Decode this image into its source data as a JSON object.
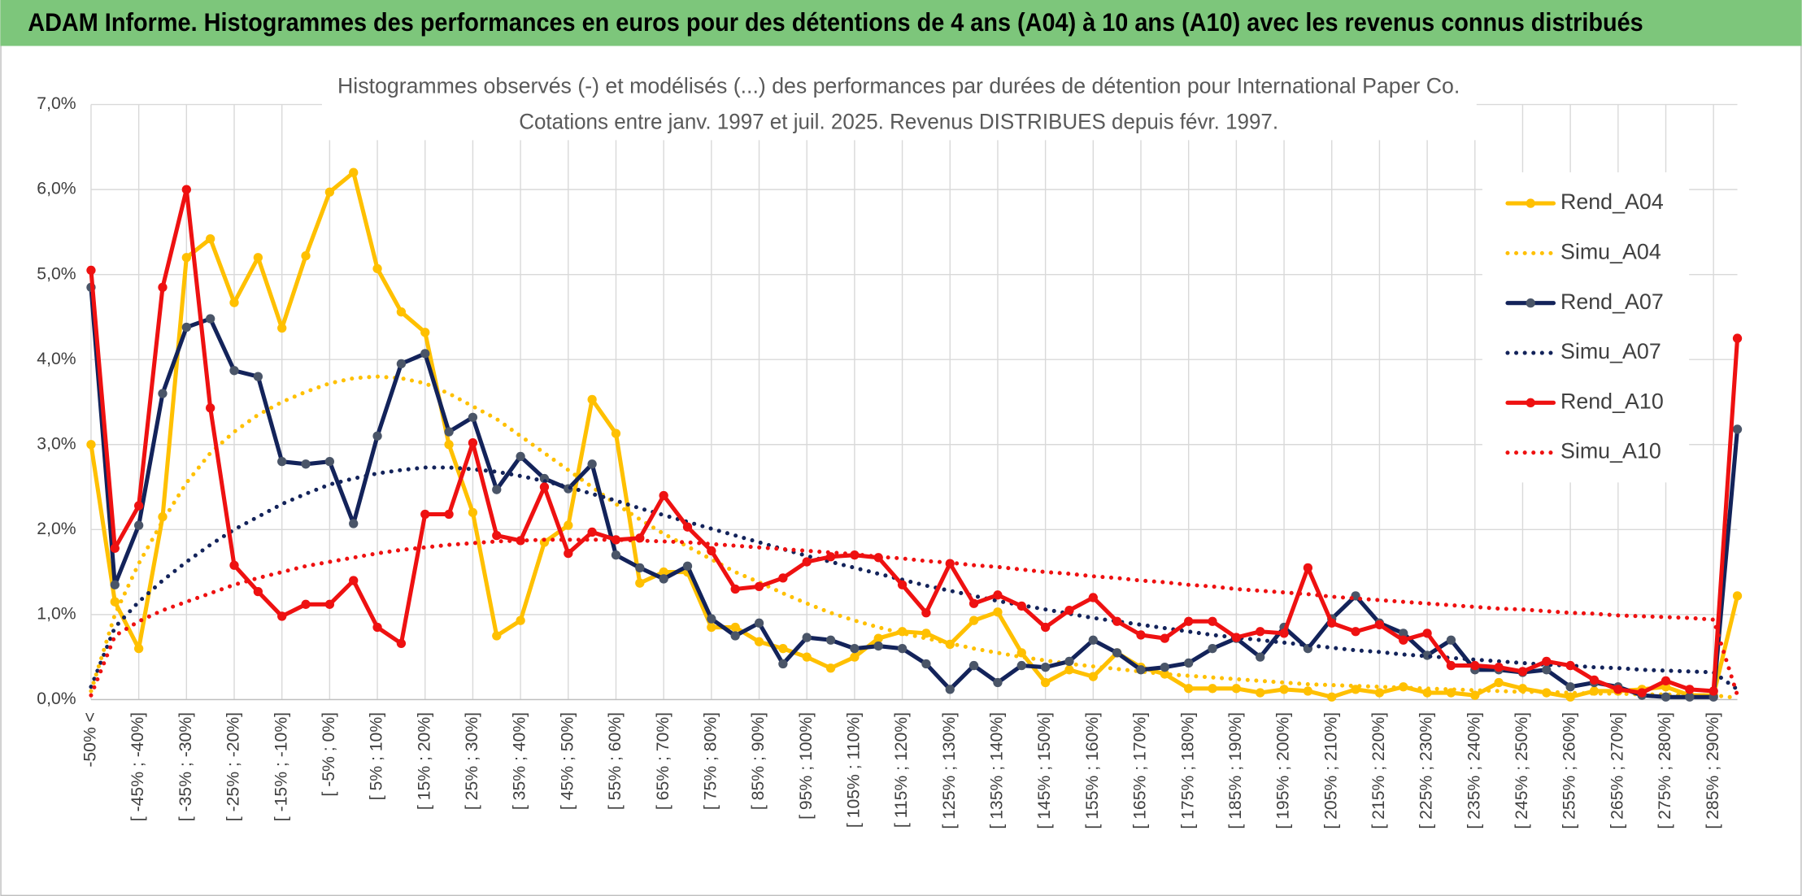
{
  "chart_data": {
    "type": "line",
    "title": "ADAM Informe. Histogrammes des performances en euros pour des détentions de 4 ans (A04) à 10 ans (A10) avec les revenus connus distribués",
    "subtitle": [
      "Histogrammes observés (-) et modélisés (...) des performances par durées de détention pour International Paper Co.",
      "Cotations entre janv. 1997 et juil. 2025. Revenus DISTRIBUES depuis févr. 1997."
    ],
    "categories": [
      "-50% <",
      null,
      "[ -45% ; -40%]",
      null,
      "[ -35% ; -30%]",
      null,
      "[ -25% ; -20%]",
      null,
      "[ -15% ; -10%]",
      null,
      "[ -5% ; 0%]",
      null,
      "[ 5% ; 10%]",
      null,
      "[ 15% ; 20%]",
      null,
      "[ 25% ; 30%]",
      null,
      "[ 35% ; 40%]",
      null,
      "[ 45% ; 50%]",
      null,
      "[ 55% ; 60%]",
      null,
      "[ 65% ; 70%]",
      null,
      "[ 75% ; 80%]",
      null,
      "[ 85% ; 90%]",
      null,
      "[ 95% ; 100%]",
      null,
      "[ 105% ; 110%]",
      null,
      "[ 115% ; 120%]",
      null,
      "[ 125% ; 130%]",
      null,
      "[ 135% ; 140%]",
      null,
      "[ 145% ; 150%]",
      null,
      "[ 155% ; 160%]",
      null,
      "[ 165% ; 170%]",
      null,
      "[ 175% ; 180%]",
      null,
      "[ 185% ; 190%]",
      null,
      "[ 195% ; 200%]",
      null,
      "[ 205% ; 210%]",
      null,
      "[ 215% ; 220%]",
      null,
      "[ 225% ; 230%]",
      null,
      "[ 235% ; 240%]",
      null,
      "[ 245% ; 250%]",
      null,
      "[ 255% ; 260%]",
      null,
      "[ 265% ; 270%]",
      null,
      "[ 275% ; 280%]",
      null,
      "[ 285% ; 290%]",
      null
    ],
    "series": [
      {
        "name": "Rend_A04",
        "color": "#FFC000",
        "style": "solid",
        "markers": true,
        "values": [
          3.0,
          1.15,
          0.6,
          2.15,
          5.2,
          5.42,
          4.67,
          5.2,
          4.37,
          5.22,
          5.97,
          6.2,
          5.07,
          4.56,
          4.32,
          3.0,
          2.2,
          0.75,
          0.93,
          1.85,
          2.05,
          3.53,
          3.13,
          1.37,
          1.5,
          1.5,
          0.85,
          0.85,
          0.68,
          0.6,
          0.5,
          0.37,
          0.5,
          0.72,
          0.8,
          0.78,
          0.65,
          0.93,
          1.03,
          0.55,
          0.2,
          0.35,
          0.27,
          0.55,
          0.38,
          0.3,
          0.13,
          0.13,
          0.13,
          0.08,
          0.12,
          0.1,
          0.03,
          0.12,
          0.08,
          0.15,
          0.08,
          0.08,
          0.05,
          0.2,
          0.13,
          0.08,
          0.03,
          0.1,
          0.1,
          0.12,
          0.15,
          0.05,
          0.05,
          1.22
        ]
      },
      {
        "name": "Simu_A04",
        "color": "#FFC000",
        "style": "dotted",
        "markers": false,
        "values": [
          0.1,
          1.0,
          1.6,
          2.1,
          2.55,
          2.9,
          3.15,
          3.35,
          3.5,
          3.62,
          3.72,
          3.78,
          3.8,
          3.78,
          3.72,
          3.6,
          3.45,
          3.3,
          3.1,
          2.9,
          2.7,
          2.5,
          2.3,
          2.12,
          1.95,
          1.8,
          1.65,
          1.5,
          1.38,
          1.25,
          1.13,
          1.02,
          0.93,
          0.85,
          0.78,
          0.72,
          0.66,
          0.6,
          0.55,
          0.5,
          0.46,
          0.42,
          0.39,
          0.36,
          0.33,
          0.3,
          0.28,
          0.26,
          0.24,
          0.22,
          0.2,
          0.18,
          0.17,
          0.16,
          0.15,
          0.14,
          0.13,
          0.12,
          0.11,
          0.1,
          0.09,
          0.09,
          0.08,
          0.07,
          0.07,
          0.06,
          0.06,
          0.05,
          0.05,
          0.02
        ]
      },
      {
        "name": "Rend_A07",
        "color": "#13235A",
        "marker_color": "#4A5568",
        "style": "solid",
        "markers": true,
        "values": [
          4.85,
          1.35,
          2.05,
          3.6,
          4.38,
          4.48,
          3.87,
          3.8,
          2.8,
          2.77,
          2.8,
          2.07,
          3.1,
          3.95,
          4.07,
          3.15,
          3.32,
          2.47,
          2.86,
          2.6,
          2.48,
          2.77,
          1.7,
          1.55,
          1.42,
          1.57,
          0.95,
          0.75,
          0.9,
          0.42,
          0.73,
          0.7,
          0.6,
          0.63,
          0.6,
          0.42,
          0.12,
          0.4,
          0.2,
          0.4,
          0.38,
          0.45,
          0.7,
          0.55,
          0.35,
          0.38,
          0.43,
          0.6,
          0.72,
          0.5,
          0.85,
          0.6,
          0.95,
          1.22,
          0.9,
          0.78,
          0.52,
          0.7,
          0.35,
          0.35,
          0.32,
          0.35,
          0.15,
          0.2,
          0.15,
          0.05,
          0.03,
          0.03,
          0.03,
          3.18
        ]
      },
      {
        "name": "Simu_A07",
        "color": "#13235A",
        "style": "dotted",
        "markers": false,
        "values": [
          0.15,
          0.85,
          1.15,
          1.4,
          1.62,
          1.82,
          2.0,
          2.15,
          2.3,
          2.42,
          2.53,
          2.6,
          2.66,
          2.7,
          2.73,
          2.73,
          2.71,
          2.68,
          2.63,
          2.57,
          2.5,
          2.42,
          2.34,
          2.25,
          2.17,
          2.09,
          2.01,
          1.93,
          1.85,
          1.77,
          1.69,
          1.62,
          1.55,
          1.48,
          1.41,
          1.34,
          1.28,
          1.22,
          1.16,
          1.11,
          1.06,
          1.01,
          0.96,
          0.92,
          0.88,
          0.84,
          0.8,
          0.76,
          0.73,
          0.7,
          0.67,
          0.64,
          0.61,
          0.58,
          0.56,
          0.53,
          0.51,
          0.49,
          0.47,
          0.45,
          0.43,
          0.41,
          0.4,
          0.38,
          0.37,
          0.35,
          0.34,
          0.33,
          0.32,
          0.12
        ]
      },
      {
        "name": "Rend_A10",
        "color": "#EE1111",
        "style": "solid",
        "markers": true,
        "values": [
          5.05,
          1.78,
          2.28,
          4.85,
          6.0,
          3.43,
          1.58,
          1.27,
          0.98,
          1.12,
          1.12,
          1.4,
          0.85,
          0.66,
          2.18,
          2.18,
          3.02,
          1.93,
          1.87,
          2.5,
          1.72,
          1.97,
          1.88,
          1.9,
          2.4,
          2.03,
          1.75,
          1.3,
          1.33,
          1.43,
          1.62,
          1.68,
          1.7,
          1.67,
          1.35,
          1.02,
          1.6,
          1.13,
          1.23,
          1.1,
          0.85,
          1.05,
          1.2,
          0.92,
          0.76,
          0.72,
          0.92,
          0.92,
          0.73,
          0.8,
          0.78,
          1.55,
          0.9,
          0.8,
          0.88,
          0.7,
          0.78,
          0.4,
          0.4,
          0.38,
          0.33,
          0.45,
          0.4,
          0.23,
          0.12,
          0.08,
          0.22,
          0.12,
          0.1,
          4.25
        ]
      },
      {
        "name": "Simu_A10",
        "color": "#EE1111",
        "style": "dotted",
        "markers": false,
        "values": [
          0.05,
          0.75,
          0.92,
          1.05,
          1.15,
          1.25,
          1.35,
          1.43,
          1.5,
          1.57,
          1.62,
          1.67,
          1.72,
          1.76,
          1.79,
          1.82,
          1.84,
          1.86,
          1.87,
          1.88,
          1.88,
          1.88,
          1.88,
          1.87,
          1.86,
          1.85,
          1.83,
          1.81,
          1.79,
          1.77,
          1.75,
          1.73,
          1.71,
          1.68,
          1.66,
          1.63,
          1.61,
          1.58,
          1.56,
          1.53,
          1.5,
          1.48,
          1.45,
          1.43,
          1.4,
          1.38,
          1.35,
          1.33,
          1.3,
          1.28,
          1.26,
          1.24,
          1.21,
          1.19,
          1.17,
          1.15,
          1.13,
          1.11,
          1.09,
          1.07,
          1.06,
          1.04,
          1.02,
          1.01,
          0.99,
          0.98,
          0.97,
          0.96,
          0.94,
          0.05
        ]
      }
    ],
    "ylim": [
      0,
      7
    ],
    "yticks": [
      {
        "value": 0,
        "label": "0,0%"
      },
      {
        "value": 1,
        "label": "1,0%"
      },
      {
        "value": 2,
        "label": "2,0%"
      },
      {
        "value": 3,
        "label": "3,0%"
      },
      {
        "value": 4,
        "label": "4,0%"
      },
      {
        "value": 5,
        "label": "5,0%"
      },
      {
        "value": 6,
        "label": "6,0%"
      },
      {
        "value": 7,
        "label": "7,0%"
      }
    ],
    "grid": true,
    "legend": "upper right"
  }
}
